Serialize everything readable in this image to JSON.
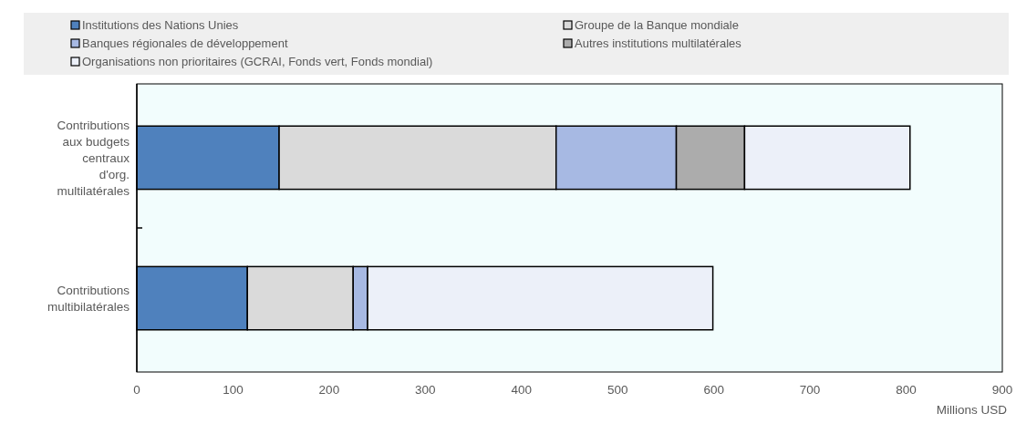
{
  "chart_data": {
    "type": "bar",
    "orientation": "horizontal",
    "stacked": true,
    "categories": [
      "Contributions aux budgets centraux d'org. multilatérales",
      "Contributions multibilatérales"
    ],
    "series": [
      {
        "name": "Institutions des Nations Unies",
        "color": "#4f81bd",
        "values": [
          148,
          115
        ]
      },
      {
        "name": "Groupe de la Banque mondiale",
        "color": "#dadada",
        "values": [
          288,
          110
        ]
      },
      {
        "name": "Banques régionales de développement",
        "color": "#a7b9e3",
        "values": [
          125,
          15
        ]
      },
      {
        "name": "Autres institutions multilatérales",
        "color": "#acacac",
        "values": [
          71,
          0
        ]
      },
      {
        "name": "Organisations non prioritaires (GCRAI, Fonds vert, Fonds mondial)",
        "color": "#ecf0f9",
        "values": [
          172,
          359
        ]
      }
    ],
    "xlim": [
      0,
      900
    ],
    "xticks": [
      0,
      100,
      200,
      300,
      400,
      500,
      600,
      700,
      800,
      900
    ],
    "xlabel": "Millions USD",
    "legend": "top",
    "grid": false
  }
}
